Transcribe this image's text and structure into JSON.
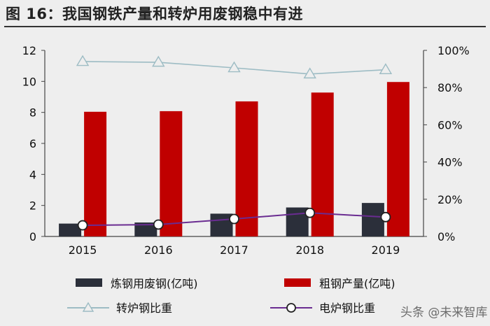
{
  "header": {
    "title": "图 16：我国钢铁产量和转炉用废钢稳中有进"
  },
  "chart_data": {
    "type": "bar",
    "categories": [
      "2015",
      "2016",
      "2017",
      "2018",
      "2019"
    ],
    "series": [
      {
        "name": "炼钢用废钢(亿吨)",
        "kind": "bar",
        "axis": "left",
        "color": "#2b2f3a",
        "values": [
          0.83,
          0.9,
          1.47,
          1.87,
          2.16
        ]
      },
      {
        "name": "粗钢产量(亿吨)",
        "kind": "bar",
        "axis": "left",
        "color": "#c00000",
        "values": [
          8.04,
          8.08,
          8.71,
          9.28,
          9.96
        ]
      },
      {
        "name": "转炉钢比重",
        "kind": "line",
        "axis": "right",
        "marker": "triangle",
        "color": "#9dbcc4",
        "values": [
          0.94,
          0.936,
          0.906,
          0.873,
          0.896
        ]
      },
      {
        "name": "电炉钢比重",
        "kind": "line",
        "axis": "right",
        "marker": "circle",
        "color": "#6a2c91",
        "values": [
          0.06,
          0.064,
          0.094,
          0.127,
          0.104
        ]
      }
    ],
    "y_left": {
      "min": 0,
      "max": 12,
      "ticks": [
        "0",
        "2",
        "4",
        "6",
        "8",
        "10",
        "12"
      ]
    },
    "y_right": {
      "min": 0,
      "max": 1,
      "ticks": [
        "0%",
        "20%",
        "40%",
        "60%",
        "80%",
        "100%"
      ]
    },
    "grid": false,
    "legend_position": "bottom"
  },
  "watermark": {
    "text": "头条 @未来智库"
  }
}
